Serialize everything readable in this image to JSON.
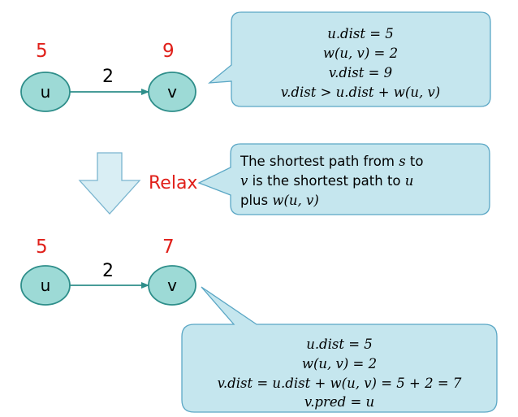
{
  "colors": {
    "node_fill": "#9ddad6",
    "node_stroke": "#2e8e8a",
    "callout_fill": "#c5e6ee",
    "callout_stroke": "#5ba7c5",
    "arrow_fill": "#d9eef4",
    "arrow_stroke": "#7ab5cf",
    "edge": "#2e8e8a",
    "red": "#e0201a"
  },
  "top_graph": {
    "u": {
      "label": "u",
      "dist": "5"
    },
    "v": {
      "label": "v",
      "dist": "9"
    },
    "weight": "2"
  },
  "bottom_graph": {
    "u": {
      "label": "u",
      "dist": "5"
    },
    "v": {
      "label": "v",
      "dist": "7"
    },
    "weight": "2"
  },
  "relax_label": "Relax",
  "callout_top": {
    "lines": [
      "u.dist = 5",
      "w(u, v) = 2",
      "v.dist = 9",
      "v.dist > u.dist + w(u, v)"
    ]
  },
  "callout_middle": {
    "line1": {
      "a": "The shortest path from ",
      "b": "s",
      "c": " to"
    },
    "line2": {
      "a": "v",
      "b": " is the shortest path to ",
      "c": "u"
    },
    "line3": {
      "a": "plus ",
      "b": "w(u, v)"
    }
  },
  "callout_bottom": {
    "lines": [
      "u.dist = 5",
      "w(u, v) = 2",
      "v.dist = u.dist + w(u, v) = 5 + 2 = 7",
      "v.pred = u"
    ]
  }
}
